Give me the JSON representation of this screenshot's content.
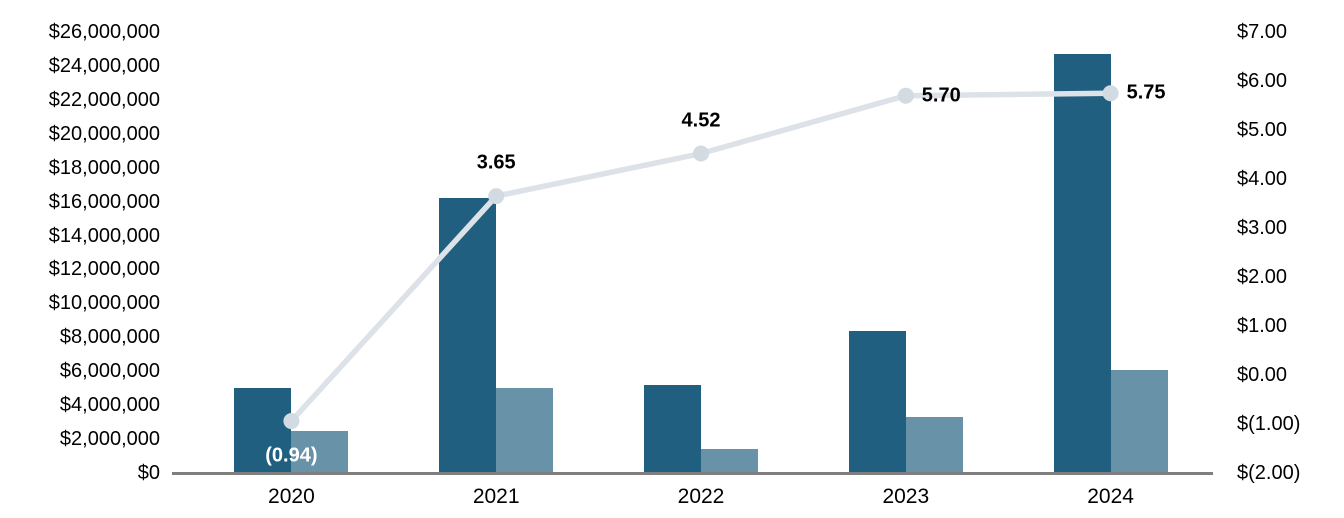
{
  "chart_data": {
    "type": "bar",
    "subtype": "combo-bar-line",
    "title": "",
    "categories": [
      "2020",
      "2021",
      "2022",
      "2023",
      "2024"
    ],
    "series": [
      {
        "name": "primary-bars",
        "type": "bar",
        "axis": "left",
        "color": "#215F80",
        "values": [
          5000000,
          16200000,
          5200000,
          8400000,
          24700000
        ]
      },
      {
        "name": "secondary-bars",
        "type": "bar",
        "axis": "left",
        "color": "#6892A8",
        "values": [
          2500000,
          5000000,
          1400000,
          3300000,
          6100000
        ]
      },
      {
        "name": "per-unit-line",
        "type": "line",
        "axis": "right",
        "color": "#DCE2E8",
        "marker_color": "#D2DAE2",
        "values": [
          -0.94,
          3.65,
          4.52,
          5.7,
          5.75
        ],
        "point_labels": [
          "(0.94)",
          "3.65",
          "4.52",
          "5.70",
          "5.75"
        ],
        "point_label_positions": [
          "below",
          "above",
          "above",
          "right",
          "right"
        ],
        "point_label_colors": [
          "#FFFFFF",
          "#000000",
          "#000000",
          "#000000",
          "#000000"
        ]
      }
    ],
    "left_axis": {
      "min": 0,
      "max": 26000000,
      "tick_step": 2000000,
      "tick_labels": [
        "$26,000,000",
        "$24,000,000",
        "$22,000,000",
        "$20,000,000",
        "$18,000,000",
        "$16,000,000",
        "$14,000,000",
        "$12,000,000",
        "$10,000,000",
        "$8,000,000",
        "$6,000,000",
        "$4,000,000",
        "$2,000,000",
        "$0"
      ]
    },
    "right_axis": {
      "min": -2,
      "max": 7,
      "tick_step": 1,
      "tick_labels": [
        "$7.00",
        "$6.00",
        "$5.00",
        "$4.00",
        "$3.00",
        "$2.00",
        "$1.00",
        "$0.00",
        "$(1.00)",
        "$(2.00)"
      ]
    },
    "x_axis": {
      "labels": [
        "2020",
        "2021",
        "2022",
        "2023",
        "2024"
      ]
    },
    "grid": false,
    "legend": null,
    "axis_line_color": "#7F7F7F"
  }
}
